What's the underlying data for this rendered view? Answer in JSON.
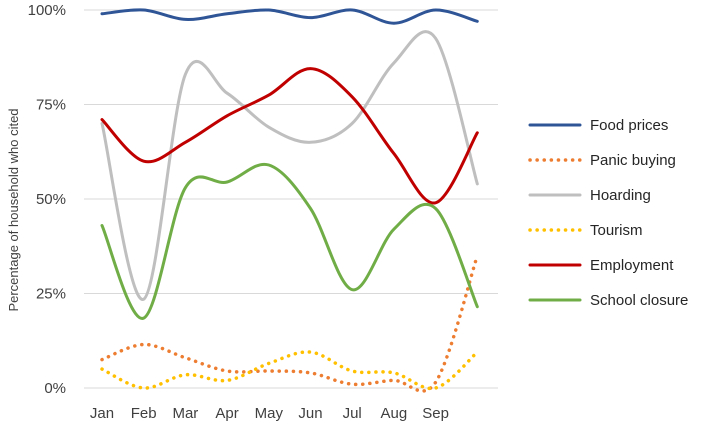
{
  "chart_data": {
    "type": "line",
    "title": "",
    "xlabel": "",
    "ylabel": "Percentage of household who cited",
    "ylim": [
      0,
      100
    ],
    "y_ticks": [
      "0%",
      "25%",
      "50%",
      "75%",
      "100%"
    ],
    "y_tick_values": [
      0,
      25,
      50,
      75,
      100
    ],
    "grid": "horizontal",
    "legend": "right",
    "smooth": true,
    "categories": [
      "Jan",
      "Feb",
      "Mar",
      "Apr",
      "May",
      "Jun",
      "Jul",
      "Aug",
      "Sep",
      ""
    ],
    "series": [
      {
        "name": "Food prices",
        "color": "#2f5597",
        "style": "solid",
        "values": [
          99,
          100,
          97.5,
          99,
          100,
          98,
          100,
          96.5,
          100,
          97
        ]
      },
      {
        "name": "Panic buying",
        "color": "#ed7d31",
        "style": "dotted",
        "values": [
          7.5,
          11.5,
          8,
          4.5,
          4.5,
          4,
          1,
          2,
          1.5,
          35
        ]
      },
      {
        "name": "Hoarding",
        "color": "#bfbfbf",
        "style": "solid",
        "values": [
          70,
          23.5,
          83,
          78,
          69,
          65,
          70,
          86,
          92.5,
          54
        ]
      },
      {
        "name": "Tourism",
        "color": "#ffc000",
        "style": "dotted",
        "values": [
          5,
          0,
          3.5,
          2,
          6.5,
          9.5,
          4.5,
          4,
          0,
          9.5
        ]
      },
      {
        "name": "Employment",
        "color": "#c00000",
        "style": "solid",
        "values": [
          71,
          60,
          65,
          72,
          77.5,
          84.5,
          77,
          62,
          49,
          67.5
        ]
      },
      {
        "name": "School closure",
        "color": "#70ad47",
        "style": "solid",
        "values": [
          43,
          18.5,
          53,
          54.5,
          59,
          47.5,
          26,
          42,
          47.5,
          21.5
        ]
      }
    ]
  }
}
